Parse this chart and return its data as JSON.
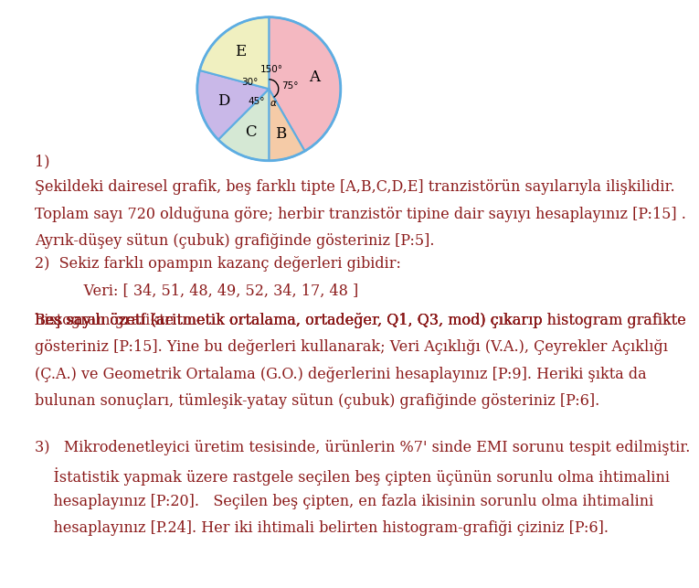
{
  "pie_labels": [
    "A",
    "B",
    "C",
    "D",
    "E"
  ],
  "pie_angles": [
    150,
    30,
    45,
    60,
    75
  ],
  "pie_colors": [
    "#F4B8C1",
    "#F5CBA7",
    "#D5E8D4",
    "#C9B8E8",
    "#F0F0C0"
  ],
  "circle_color": "#5DADE2",
  "angle_labels": [
    "150°",
    "30°",
    "45°",
    "α",
    "75°"
  ],
  "title_number": "1)",
  "para1_line1": "Şekildeki dairesel grafik, beş farklı tipte [A,B,C,D,E] tranzistörün sayılarıyla ilişkilidir.",
  "para1_line2": "Toplam sayı 720 olduğuna göre; herbir tranzistör tipine dair sayıyı hesaplayınız [P:15] .",
  "para1_line3": "Ayrık-düşey sütun (çubuk) grafiğinde gösteriniz [P:5].",
  "item2_header": "2)  Sekiz farklı opampın kazanç değerleri gibidir:",
  "item2_data": "     Veri: [ 34, 51, 48, 49, 52, 34, 17, 48 ]",
  "item2_line1": "Beş sayılı özeti (aritmetik ortalama, ortadeğer, Q1, Q3, mod) çıkarıp ",
  "item2_link": "histogram grafikte",
  "item2_line2": "gösteriniz [P:15]. Yine bu değerleri kullanarak; Veri Açıklığı (V.A.), Çeyrekler Açıklığı",
  "item2_line3": "(Ç.A.) ve Geometrik Ortalama (G.O.) değerlerini hesaplayınız [P:9]. Heriki şıkta da",
  "item2_line4": "bulunan sonuçları, tümleşik-yatay sütun (çubuk) grafiğinde gösteriniz [P:6].",
  "item3_header": "3)   Mikrodenetleyici üretim tesisinde, ürünlerin %7' sinde EMI sorunu tespit edilmiştir.",
  "item3_line1": "    İstatistik yapmak üzere rastgele seçilen beş çipten üçünün sorunlu olma ihtimalini",
  "item3_line2": "    hesaplayınız [P:20].   Seçilen beş çipten, en fazla ikisinin sorunlu olma ihtimalini",
  "item3_line3": "    hesaplayınız [P.24]. Her iki ihtimali belirten histogram-grafiği çiziniz [P:6].",
  "text_color": "#8B1A1A",
  "bg_color": "#FFFFFF",
  "font_size": 11.5
}
